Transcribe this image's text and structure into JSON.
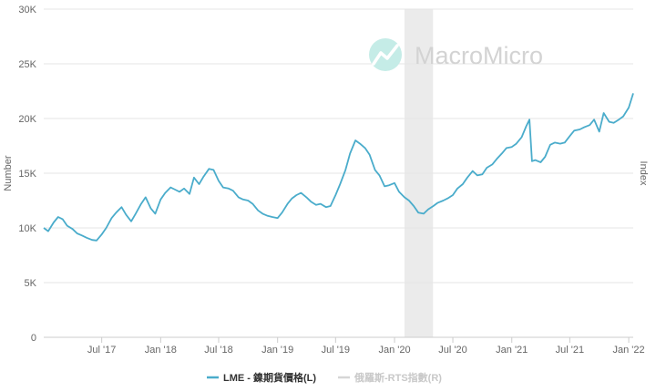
{
  "chart_data": {
    "type": "line",
    "title": "",
    "watermark": "MacroMicro",
    "ylabel": "Number",
    "y2label": "Index",
    "ylim": [
      0,
      30000
    ],
    "yticks": [
      {
        "value": 0,
        "label": "0"
      },
      {
        "value": 5000,
        "label": "5K"
      },
      {
        "value": 10000,
        "label": "10K"
      },
      {
        "value": 15000,
        "label": "15K"
      },
      {
        "value": 20000,
        "label": "20K"
      },
      {
        "value": 25000,
        "label": "25K"
      },
      {
        "value": 30000,
        "label": "30K"
      }
    ],
    "xlim": [
      "2017-01-01",
      "2022-01-15"
    ],
    "xticks": [
      {
        "value": "2017-07-01",
        "label": "Jul '17"
      },
      {
        "value": "2018-01-01",
        "label": "Jan '18"
      },
      {
        "value": "2018-07-01",
        "label": "Jul '18"
      },
      {
        "value": "2019-01-01",
        "label": "Jan '19"
      },
      {
        "value": "2019-07-01",
        "label": "Jul '19"
      },
      {
        "value": "2020-01-01",
        "label": "Jan '20"
      },
      {
        "value": "2020-07-01",
        "label": "Jul '20"
      },
      {
        "value": "2021-01-01",
        "label": "Jan '21"
      },
      {
        "value": "2021-07-01",
        "label": "Jul '21"
      },
      {
        "value": "2022-01-01",
        "label": "Jan '22"
      }
    ],
    "shaded_region": {
      "from": "2020-02-01",
      "to": "2020-04-30",
      "color": "#ebebeb"
    },
    "grid": true,
    "legend_position": "bottom-center",
    "series": [
      {
        "name": "LME - 鎳期貨價格(L)",
        "color": "#4aaccb",
        "active": true,
        "points": [
          [
            "2017-01-01",
            10000
          ],
          [
            "2017-01-15",
            9700
          ],
          [
            "2017-02-01",
            10500
          ],
          [
            "2017-02-15",
            11000
          ],
          [
            "2017-03-01",
            10800
          ],
          [
            "2017-03-15",
            10200
          ],
          [
            "2017-04-01",
            9900
          ],
          [
            "2017-04-15",
            9500
          ],
          [
            "2017-05-01",
            9300
          ],
          [
            "2017-05-15",
            9100
          ],
          [
            "2017-06-01",
            8900
          ],
          [
            "2017-06-15",
            8850
          ],
          [
            "2017-07-01",
            9400
          ],
          [
            "2017-07-15",
            10000
          ],
          [
            "2017-08-01",
            10900
          ],
          [
            "2017-08-15",
            11400
          ],
          [
            "2017-09-01",
            11900
          ],
          [
            "2017-09-15",
            11200
          ],
          [
            "2017-10-01",
            10600
          ],
          [
            "2017-10-15",
            11300
          ],
          [
            "2017-11-01",
            12200
          ],
          [
            "2017-11-15",
            12800
          ],
          [
            "2017-12-01",
            11800
          ],
          [
            "2017-12-15",
            11300
          ],
          [
            "2018-01-01",
            12600
          ],
          [
            "2018-01-15",
            13200
          ],
          [
            "2018-02-01",
            13700
          ],
          [
            "2018-02-15",
            13500
          ],
          [
            "2018-03-01",
            13300
          ],
          [
            "2018-03-15",
            13600
          ],
          [
            "2018-04-01",
            13100
          ],
          [
            "2018-04-15",
            14600
          ],
          [
            "2018-05-01",
            14000
          ],
          [
            "2018-05-15",
            14700
          ],
          [
            "2018-06-01",
            15400
          ],
          [
            "2018-06-15",
            15300
          ],
          [
            "2018-07-01",
            14300
          ],
          [
            "2018-07-15",
            13700
          ],
          [
            "2018-08-01",
            13600
          ],
          [
            "2018-08-15",
            13400
          ],
          [
            "2018-09-01",
            12800
          ],
          [
            "2018-09-15",
            12600
          ],
          [
            "2018-10-01",
            12500
          ],
          [
            "2018-10-15",
            12200
          ],
          [
            "2018-11-01",
            11600
          ],
          [
            "2018-11-15",
            11300
          ],
          [
            "2018-12-01",
            11100
          ],
          [
            "2018-12-15",
            11000
          ],
          [
            "2019-01-01",
            10900
          ],
          [
            "2019-01-15",
            11400
          ],
          [
            "2019-02-01",
            12200
          ],
          [
            "2019-02-15",
            12700
          ],
          [
            "2019-03-01",
            13000
          ],
          [
            "2019-03-15",
            13200
          ],
          [
            "2019-04-01",
            12800
          ],
          [
            "2019-04-15",
            12400
          ],
          [
            "2019-05-01",
            12100
          ],
          [
            "2019-05-15",
            12200
          ],
          [
            "2019-06-01",
            11900
          ],
          [
            "2019-06-15",
            12000
          ],
          [
            "2019-07-01",
            13000
          ],
          [
            "2019-07-15",
            14000
          ],
          [
            "2019-08-01",
            15300
          ],
          [
            "2019-08-15",
            16800
          ],
          [
            "2019-09-01",
            18000
          ],
          [
            "2019-09-15",
            17700
          ],
          [
            "2019-10-01",
            17300
          ],
          [
            "2019-10-15",
            16700
          ],
          [
            "2019-11-01",
            15300
          ],
          [
            "2019-11-15",
            14800
          ],
          [
            "2019-12-01",
            13800
          ],
          [
            "2019-12-15",
            13900
          ],
          [
            "2020-01-01",
            14100
          ],
          [
            "2020-01-15",
            13300
          ],
          [
            "2020-02-01",
            12800
          ],
          [
            "2020-02-15",
            12500
          ],
          [
            "2020-03-01",
            12000
          ],
          [
            "2020-03-15",
            11400
          ],
          [
            "2020-04-01",
            11300
          ],
          [
            "2020-04-15",
            11700
          ],
          [
            "2020-05-01",
            12000
          ],
          [
            "2020-05-15",
            12300
          ],
          [
            "2020-06-01",
            12500
          ],
          [
            "2020-06-15",
            12700
          ],
          [
            "2020-07-01",
            13000
          ],
          [
            "2020-07-15",
            13600
          ],
          [
            "2020-08-01",
            14000
          ],
          [
            "2020-08-15",
            14600
          ],
          [
            "2020-09-01",
            15200
          ],
          [
            "2020-09-15",
            14800
          ],
          [
            "2020-10-01",
            14900
          ],
          [
            "2020-10-15",
            15500
          ],
          [
            "2020-11-01",
            15800
          ],
          [
            "2020-11-15",
            16300
          ],
          [
            "2020-12-01",
            16800
          ],
          [
            "2020-12-15",
            17300
          ],
          [
            "2021-01-01",
            17400
          ],
          [
            "2021-01-15",
            17700
          ],
          [
            "2021-02-01",
            18300
          ],
          [
            "2021-02-15",
            19300
          ],
          [
            "2021-02-25",
            19900
          ],
          [
            "2021-03-05",
            16100
          ],
          [
            "2021-03-15",
            16200
          ],
          [
            "2021-04-01",
            16000
          ],
          [
            "2021-04-15",
            16500
          ],
          [
            "2021-05-01",
            17600
          ],
          [
            "2021-05-15",
            17800
          ],
          [
            "2021-06-01",
            17700
          ],
          [
            "2021-06-15",
            17800
          ],
          [
            "2021-07-01",
            18400
          ],
          [
            "2021-07-15",
            18900
          ],
          [
            "2021-08-01",
            19000
          ],
          [
            "2021-08-15",
            19200
          ],
          [
            "2021-09-01",
            19400
          ],
          [
            "2021-09-15",
            19900
          ],
          [
            "2021-10-01",
            18800
          ],
          [
            "2021-10-15",
            20500
          ],
          [
            "2021-11-01",
            19700
          ],
          [
            "2021-11-15",
            19600
          ],
          [
            "2021-12-01",
            19900
          ],
          [
            "2021-12-15",
            20200
          ],
          [
            "2022-01-01",
            21000
          ],
          [
            "2022-01-15",
            22300
          ]
        ]
      },
      {
        "name": "俄羅斯-RTS指數(R)",
        "color": "#d6d6d6",
        "active": false,
        "points": []
      }
    ]
  }
}
